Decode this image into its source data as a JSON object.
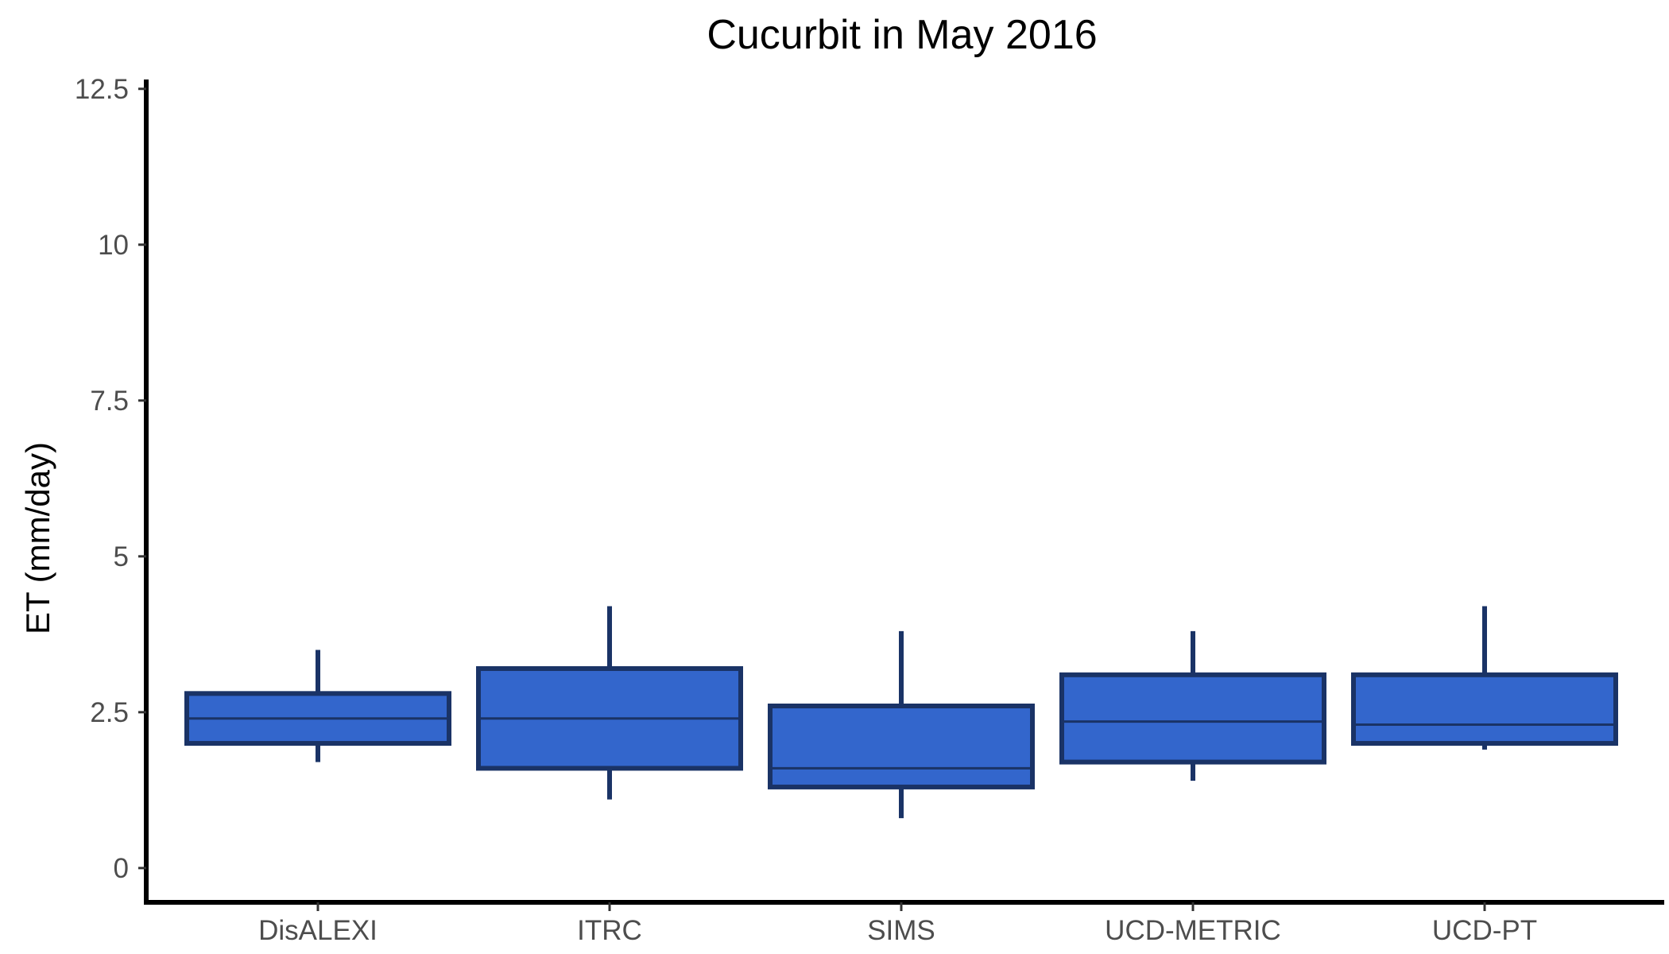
{
  "chart_data": {
    "type": "boxplot",
    "title": "Cucurbit in May 2016",
    "xlabel": "",
    "ylabel": "ET (mm/day)",
    "ylim": [
      -0.55,
      12.65
    ],
    "yticks": [
      "0",
      "2.5",
      "5",
      "7.5",
      "10",
      "12.5"
    ],
    "ytick_values": [
      0,
      2.5,
      5,
      7.5,
      10,
      12.5
    ],
    "categories": [
      "DisALEXI",
      "ITRC",
      "SIMS",
      "UCD-METRIC",
      "UCD-PT"
    ],
    "boxes": [
      {
        "min": 1.7,
        "q1": 2.0,
        "median": 2.4,
        "q3": 2.8,
        "max": 3.5
      },
      {
        "min": 1.1,
        "q1": 1.6,
        "median": 2.4,
        "q3": 3.2,
        "max": 4.2
      },
      {
        "min": 0.8,
        "q1": 1.3,
        "median": 1.6,
        "q3": 2.6,
        "max": 3.8
      },
      {
        "min": 1.4,
        "q1": 1.7,
        "median": 2.35,
        "q3": 3.1,
        "max": 3.8
      },
      {
        "min": 1.9,
        "q1": 2.0,
        "median": 2.3,
        "q3": 3.1,
        "max": 4.2
      }
    ],
    "fill_color": "#3366cc",
    "line_color": "#1a3366",
    "grid": false,
    "legend": "none"
  }
}
